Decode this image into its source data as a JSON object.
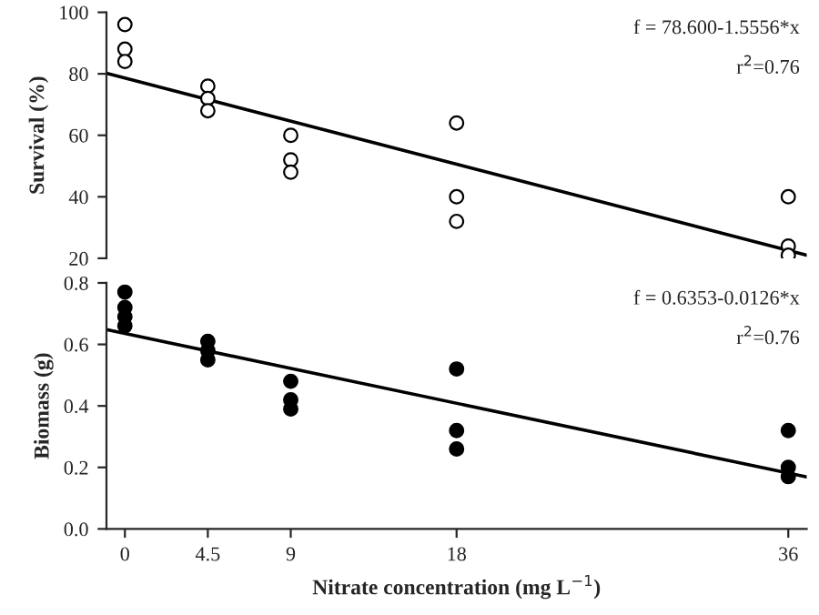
{
  "chart_data": [
    {
      "type": "scatter",
      "ylabel": "Survival (%)",
      "xticks": [
        0,
        4.5,
        9,
        18,
        36
      ],
      "ylim": [
        20,
        100
      ],
      "yticks": [
        20,
        40,
        60,
        80,
        100
      ],
      "tick_labels": "y",
      "grid": false,
      "annotations": [
        "f = 78.600-1.5556*x",
        "r$^{2}$=0.76"
      ],
      "series": [
        {
          "color": "#ffffff",
          "marker": "circle",
          "x": [
            0,
            0,
            0,
            4.5,
            4.5,
            4.5,
            9,
            9,
            9,
            18,
            18,
            18,
            36,
            36,
            36
          ],
          "values": [
            96,
            88,
            84,
            76,
            72,
            68,
            60,
            52,
            48,
            64,
            40,
            32,
            40,
            24,
            21
          ]
        },
        {
          "type": "line",
          "marker": "none",
          "color": "#000000",
          "x": [
            -1,
            37
          ],
          "values": [
            80.2,
            21.0
          ]
        }
      ]
    },
    {
      "type": "scatter",
      "ylabel": "Biomass (g)",
      "xlabel": "Nitrate concentration (mg L$^{−1}$)",
      "xlim": [
        -1,
        37
      ],
      "xticks": [
        0,
        4.5,
        9,
        18,
        36
      ],
      "ylim": [
        0,
        0.8
      ],
      "yticks": [
        {
          "value": 0,
          "label": "0.0"
        },
        0.2,
        0.4,
        0.6,
        0.8
      ],
      "grid": false,
      "annotations": [
        "f = 0.6353-0.0126*x",
        "r$^{2}$=0.76"
      ],
      "series": [
        {
          "color": "#000000",
          "marker": "circle",
          "x": [
            0,
            0,
            0,
            0,
            4.5,
            4.5,
            4.5,
            9,
            9,
            9,
            18,
            18,
            18,
            36,
            36,
            36
          ],
          "values": [
            0.77,
            0.72,
            0.69,
            0.66,
            0.61,
            0.58,
            0.55,
            0.48,
            0.42,
            0.39,
            0.52,
            0.32,
            0.26,
            0.32,
            0.2,
            0.17
          ]
        },
        {
          "type": "line",
          "marker": "none",
          "color": "#000000",
          "x": [
            -1,
            37
          ],
          "values": [
            0.648,
            0.169
          ]
        }
      ]
    }
  ]
}
